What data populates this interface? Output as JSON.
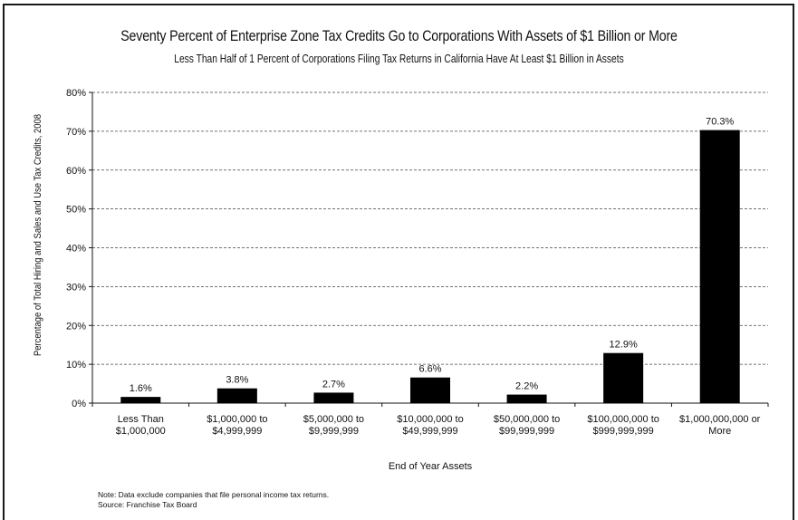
{
  "chart_data": {
    "type": "bar",
    "title": "Seventy Percent of Enterprise Zone Tax Credits Go to Corporations With Assets of $1 Billion or More",
    "subtitle": "Less Than Half of 1 Percent of Corporations Filing Tax Returns in California Have At Least $1 Billion in Assets",
    "xlabel": "End of Year Assets",
    "ylabel": "Percentage of Total Hiring and Sales and Use Tax Credits, 2008",
    "categories": [
      [
        "Less Than",
        "$1,000,000"
      ],
      [
        "$1,000,000 to",
        "$4,999,999"
      ],
      [
        "$5,000,000 to",
        "$9,999,999"
      ],
      [
        "$10,000,000 to",
        "$49,999,999"
      ],
      [
        "$50,000,000 to",
        "$99,999,999"
      ],
      [
        "$100,000,000 to",
        "$999,999,999"
      ],
      [
        "$1,000,000,000 or",
        "More"
      ]
    ],
    "values": [
      1.6,
      3.8,
      2.7,
      6.6,
      2.2,
      12.9,
      70.3
    ],
    "data_labels": [
      "1.6%",
      "3.8%",
      "2.7%",
      "6.6%",
      "2.2%",
      "12.9%",
      "70.3%"
    ],
    "ylim": [
      0,
      80
    ],
    "yticks": [
      0,
      10,
      20,
      30,
      40,
      50,
      60,
      70,
      80
    ],
    "ytick_labels": [
      "0%",
      "10%",
      "20%",
      "30%",
      "40%",
      "50%",
      "60%",
      "70%",
      "80%"
    ],
    "grid": true,
    "grid_style": "dashed",
    "bar_color": "#000000"
  },
  "notes": {
    "note": "Note: Data exclude companies that file personal income tax returns.",
    "source": "Source: Franchise Tax Board"
  }
}
